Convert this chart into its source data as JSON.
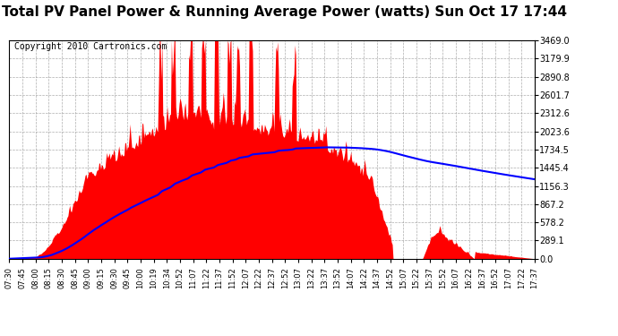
{
  "title": "Total PV Panel Power & Running Average Power (watts) Sun Oct 17 17:44",
  "copyright": "Copyright 2010 Cartronics.com",
  "yticks": [
    0.0,
    289.1,
    578.2,
    867.2,
    1156.3,
    1445.4,
    1734.5,
    2023.6,
    2312.6,
    2601.7,
    2890.8,
    3179.9,
    3469.0
  ],
  "ymax": 3469.0,
  "ymin": 0.0,
  "bar_color": "#FF0000",
  "line_color": "#0000FF",
  "bg_color": "#FFFFFF",
  "grid_color": "#AAAAAA",
  "border_color": "#000000",
  "title_fontsize": 11,
  "copyright_fontsize": 7,
  "xtick_labels": [
    "07:30",
    "07:45",
    "08:00",
    "08:15",
    "08:30",
    "08:45",
    "09:00",
    "09:15",
    "09:30",
    "09:45",
    "10:00",
    "10:19",
    "10:34",
    "10:52",
    "11:07",
    "11:22",
    "11:37",
    "11:52",
    "12:07",
    "12:22",
    "12:37",
    "12:52",
    "13:07",
    "13:22",
    "13:37",
    "13:52",
    "14:07",
    "14:22",
    "14:37",
    "14:52",
    "15:07",
    "15:22",
    "15:37",
    "15:52",
    "16:07",
    "16:22",
    "16:37",
    "16:52",
    "17:07",
    "17:22",
    "17:37"
  ],
  "n_points": 610
}
